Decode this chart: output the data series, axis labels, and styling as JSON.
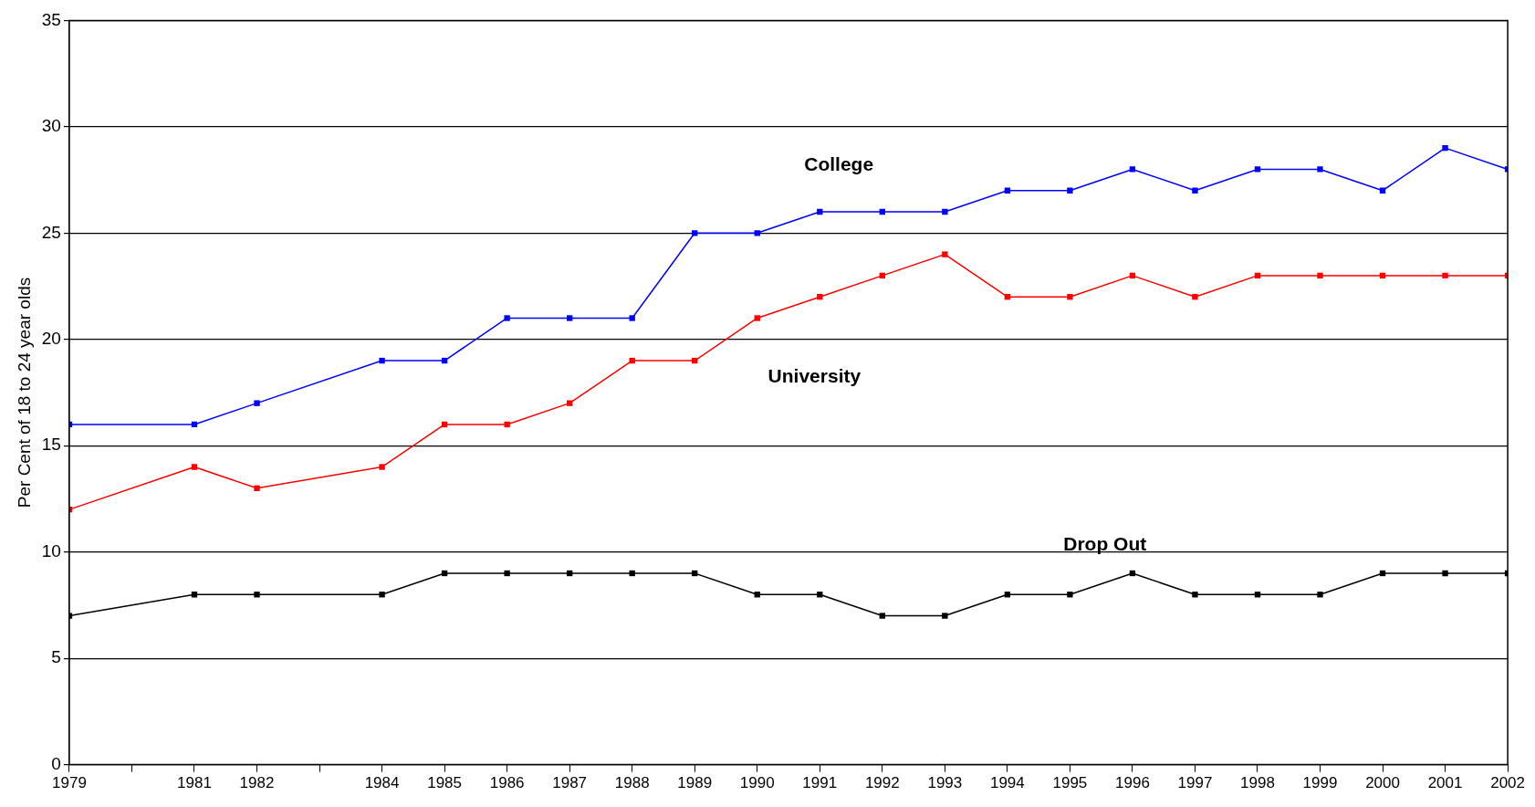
{
  "chart_data": {
    "type": "line",
    "ylabel": "Per Cent of 18 to 24 year olds",
    "x": [
      1979,
      1981,
      1982,
      1984,
      1985,
      1986,
      1987,
      1988,
      1989,
      1990,
      1991,
      1992,
      1993,
      1994,
      1995,
      1996,
      1997,
      1998,
      1999,
      2000,
      2001,
      2002
    ],
    "series": [
      {
        "name": "College",
        "color": "#0000ff",
        "values": [
          16,
          16,
          17,
          19,
          19,
          21,
          21,
          21,
          25,
          25,
          26,
          26,
          26,
          27,
          27,
          28,
          27,
          28,
          28,
          27,
          29,
          28
        ]
      },
      {
        "name": "University",
        "color": "#ff0000",
        "values": [
          12,
          14,
          13,
          14,
          16,
          16,
          17,
          19,
          19,
          21,
          22,
          23,
          24,
          22,
          22,
          23,
          22,
          23,
          23,
          23,
          23,
          23
        ]
      },
      {
        "name": "Drop Out",
        "color": "#000000",
        "values": [
          7,
          8,
          8,
          8,
          9,
          9,
          9,
          9,
          9,
          8,
          8,
          7,
          7,
          8,
          8,
          9,
          8,
          8,
          8,
          9,
          9,
          9
        ]
      }
    ],
    "xlim": [
      1979,
      2002
    ],
    "xticks": [
      1979,
      {
        "value": 1980,
        "label": null
      },
      1981,
      1982,
      {
        "value": 1983,
        "label": null
      },
      1984,
      1985,
      1986,
      1987,
      1988,
      1989,
      1990,
      1991,
      1992,
      1993,
      1994,
      1995,
      1996,
      1997,
      1998,
      1999,
      2000,
      2001,
      2002
    ],
    "ylim": [
      0,
      35
    ],
    "yticks": [
      0,
      5,
      10,
      15,
      20,
      25,
      30,
      35
    ],
    "grid": "y",
    "legend": false,
    "marker": "square",
    "line_style": "solid"
  }
}
